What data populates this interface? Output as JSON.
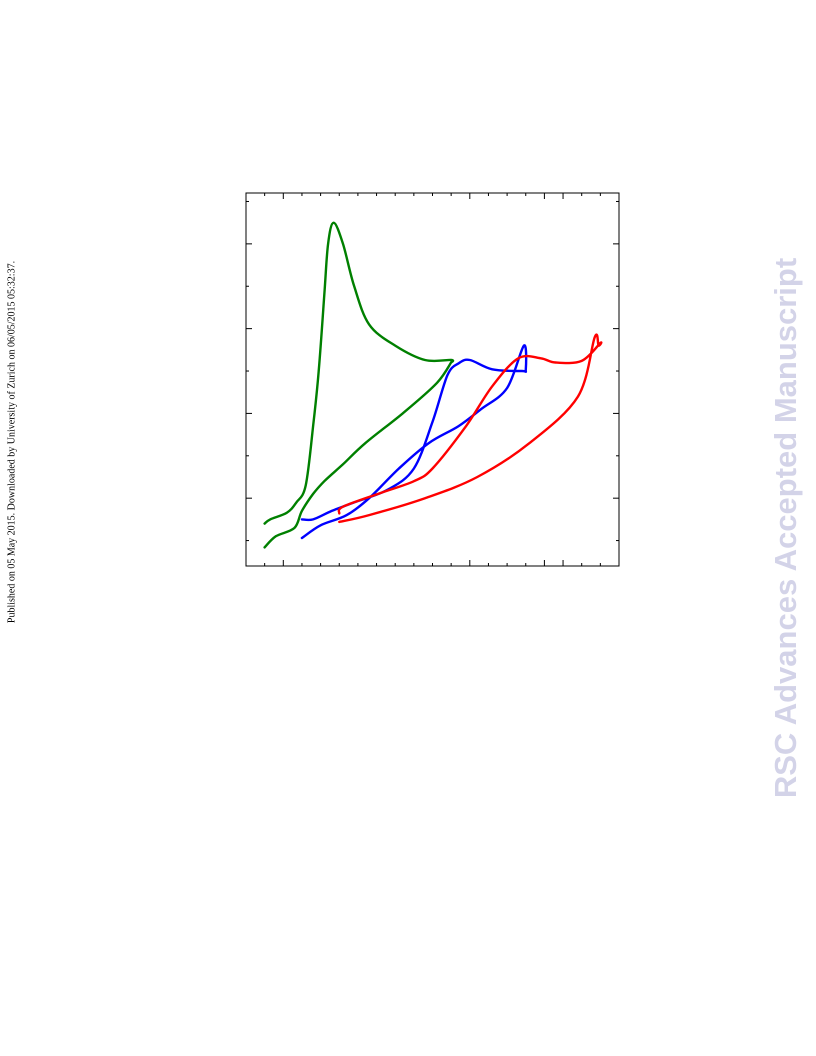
{
  "side_note": "Published on 05 May 2015. Downloaded by University of Zurich on 06/05/2015 05:32:37.",
  "watermark": "RSC Advances Accepted Manuscript",
  "chart_data": {
    "type": "line",
    "title": "",
    "xlabel": "",
    "ylabel": "",
    "xlim": [
      0,
      10
    ],
    "ylim": [
      0,
      4.4
    ],
    "x_major_ticks": [
      0,
      0.98,
      5.95,
      8.0,
      8.58
    ],
    "y_major_ticks": [
      0.3,
      0.81,
      1.8,
      2.8,
      3.8
    ],
    "tick_labels_visible": false,
    "grid": false,
    "legend": "none",
    "series": [
      {
        "color": "#008000",
        "points": [
          [
            0.5,
            0.22
          ],
          [
            0.8,
            0.35
          ],
          [
            1.3,
            0.45
          ],
          [
            1.5,
            0.65
          ],
          [
            1.8,
            0.85
          ],
          [
            2.1,
            1.0
          ],
          [
            2.6,
            1.2
          ],
          [
            3.2,
            1.45
          ],
          [
            4.2,
            1.8
          ],
          [
            5.1,
            2.15
          ],
          [
            5.5,
            2.4
          ],
          [
            5.5,
            2.4
          ],
          [
            5.5,
            2.43
          ],
          [
            4.8,
            2.43
          ],
          [
            4.0,
            2.6
          ],
          [
            3.3,
            2.85
          ],
          [
            2.9,
            3.3
          ],
          [
            2.6,
            3.8
          ],
          [
            2.35,
            4.05
          ],
          [
            2.2,
            3.8
          ],
          [
            2.1,
            3.2
          ],
          [
            1.95,
            2.3
          ],
          [
            1.8,
            1.65
          ],
          [
            1.6,
            0.95
          ],
          [
            1.35,
            0.75
          ],
          [
            1.1,
            0.63
          ],
          [
            0.65,
            0.55
          ],
          [
            0.5,
            0.5
          ]
        ]
      },
      {
        "color": "#0000ff",
        "points": [
          [
            1.5,
            0.33
          ],
          [
            2.0,
            0.48
          ],
          [
            2.7,
            0.6
          ],
          [
            3.3,
            0.8
          ],
          [
            4.1,
            1.15
          ],
          [
            4.9,
            1.45
          ],
          [
            5.7,
            1.65
          ],
          [
            6.3,
            1.85
          ],
          [
            7.0,
            2.1
          ],
          [
            7.45,
            2.6
          ],
          [
            7.5,
            2.32
          ],
          [
            7.4,
            2.3
          ],
          [
            6.6,
            2.32
          ],
          [
            6.0,
            2.43
          ],
          [
            5.7,
            2.39
          ],
          [
            5.4,
            2.25
          ],
          [
            5.0,
            1.7
          ],
          [
            4.5,
            1.15
          ],
          [
            3.8,
            0.9
          ],
          [
            2.9,
            0.75
          ],
          [
            2.3,
            0.65
          ],
          [
            1.8,
            0.55
          ],
          [
            1.5,
            0.55
          ]
        ]
      },
      {
        "color": "#ff0000",
        "points": [
          [
            2.5,
            0.52
          ],
          [
            3.3,
            0.6
          ],
          [
            4.8,
            0.8
          ],
          [
            6.2,
            1.05
          ],
          [
            7.6,
            1.45
          ],
          [
            8.9,
            2.0
          ],
          [
            9.35,
            2.7
          ],
          [
            9.45,
            2.6
          ],
          [
            9.5,
            2.63
          ],
          [
            9.0,
            2.42
          ],
          [
            8.3,
            2.4
          ],
          [
            7.9,
            2.45
          ],
          [
            7.3,
            2.45
          ],
          [
            6.6,
            2.12
          ],
          [
            5.9,
            1.65
          ],
          [
            5.0,
            1.15
          ],
          [
            4.5,
            1.0
          ],
          [
            3.6,
            0.86
          ],
          [
            2.6,
            0.7
          ],
          [
            2.5,
            0.62
          ]
        ]
      }
    ]
  }
}
